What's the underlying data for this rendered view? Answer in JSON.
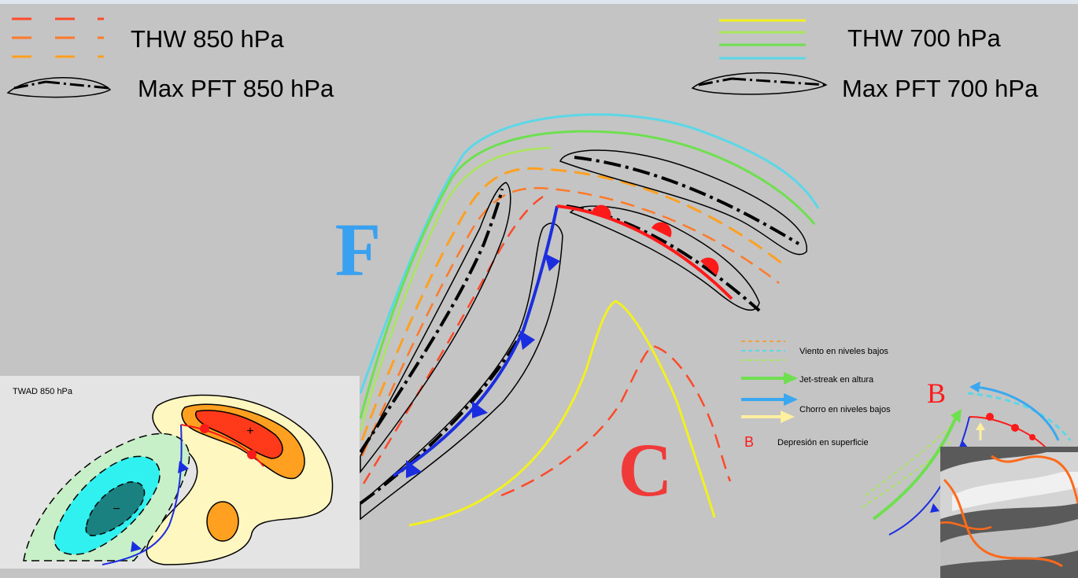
{
  "legend": {
    "thw850": "THW 850 hPa",
    "pft850": "Max PFT 850 hPa",
    "thw700": "THW 700 hPa",
    "pft700": "Max PFT 700 hPa"
  },
  "labels": {
    "cold_letter": "F",
    "warm_letter": "C",
    "low_letter": "B"
  },
  "wind_legend": [
    {
      "label": "Viento en niveles bajos"
    },
    {
      "label": "Jet-streak en altura"
    },
    {
      "label": "Chorro en niveles bajos"
    },
    {
      "label": "Depresión en superficie",
      "symbol": "B"
    }
  ],
  "inset": {
    "title": "TWAD 850 hPa",
    "cold_symbol": "−",
    "warm_symbol": "+"
  },
  "colors": {
    "background": "#c4c4c4",
    "cold_front": "#1a2ee0",
    "warm_front": "#ff1a1a",
    "thw850": [
      "#ff4a2a",
      "#ff7a2a",
      "#ffa020"
    ],
    "thw700": [
      "#f2f020",
      "#a8e85a",
      "#6ee050",
      "#5ad8e8"
    ],
    "f_letter": "#3aa0f0",
    "c_letter": "#f03a3a",
    "warm_contour": "#e4e4e4",
    "jet_altura": "#6ee050",
    "viento_bajo": "#f0a040",
    "chorro_bajo": "#3aa8f0",
    "chorro_bajo_2": "#fff0a0"
  }
}
